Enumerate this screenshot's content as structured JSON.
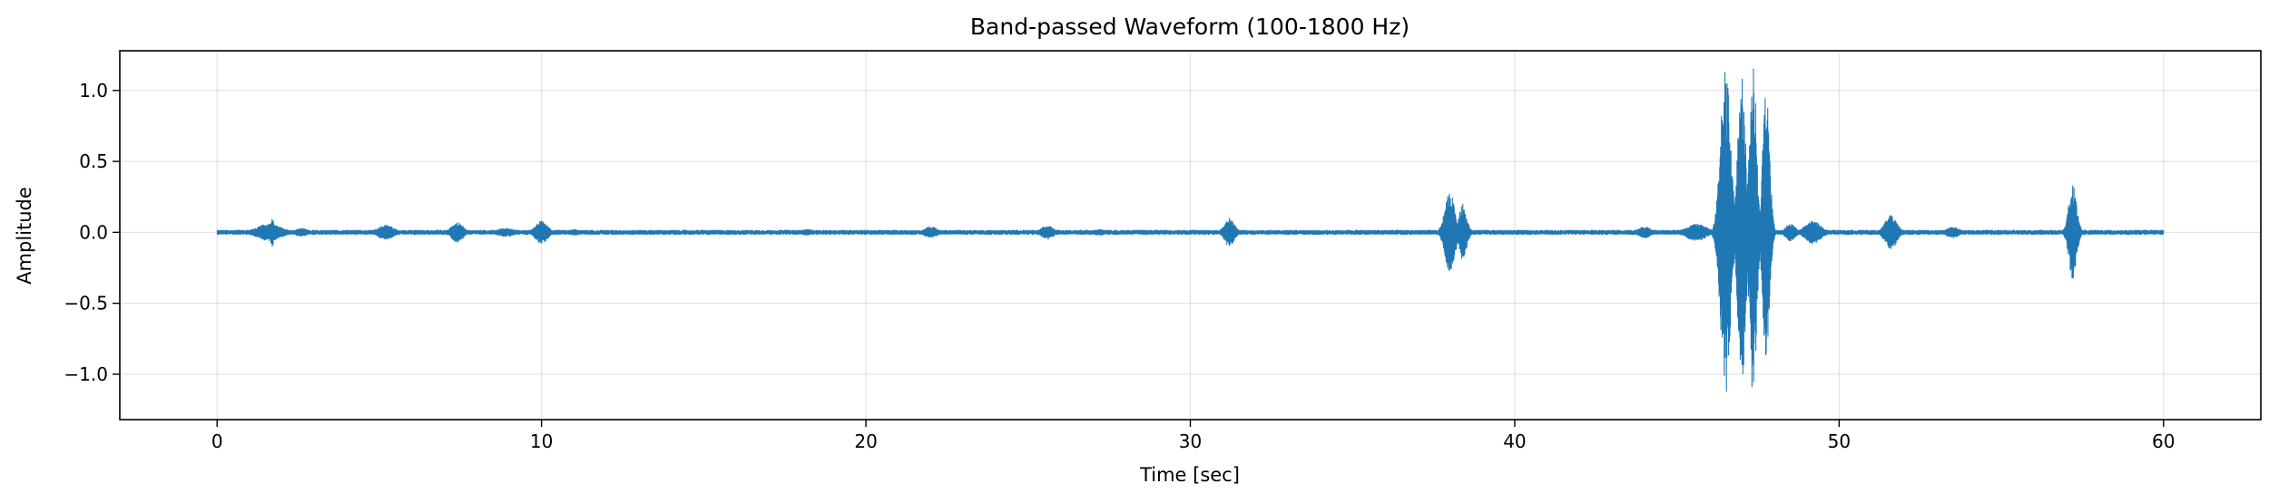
{
  "chart_data": {
    "type": "line",
    "title": "Band-passed Waveform (100-1800 Hz)",
    "xlabel": "Time [sec]",
    "ylabel": "Amplitude",
    "xlim": [
      -3,
      63
    ],
    "ylim": [
      -1.32,
      1.28
    ],
    "x_ticks": [
      0,
      10,
      20,
      30,
      40,
      50,
      60
    ],
    "x_tick_labels": [
      "0",
      "10",
      "20",
      "30",
      "40",
      "50",
      "60"
    ],
    "y_ticks": [
      -1.0,
      -0.5,
      0.0,
      0.5,
      1.0
    ],
    "y_tick_labels": [
      "−1.0",
      "−0.5",
      "0.0",
      "0.5",
      "1.0"
    ],
    "grid": true,
    "legend": "none",
    "color": "#1f77b4",
    "x_range": [
      0,
      60
    ],
    "baseline_amplitude": 0.01,
    "series": [
      {
        "bursts": [
          {
            "t": 1.6,
            "amp": 0.06,
            "dur": 1.2
          },
          {
            "t": 1.7,
            "amp": 0.1,
            "dur": 0.2
          },
          {
            "t": 2.6,
            "amp": 0.03,
            "dur": 0.6
          },
          {
            "t": 5.2,
            "amp": 0.05,
            "dur": 0.8
          },
          {
            "t": 7.4,
            "amp": 0.07,
            "dur": 0.6
          },
          {
            "t": 8.9,
            "amp": 0.03,
            "dur": 0.8
          },
          {
            "t": 10.0,
            "amp": 0.08,
            "dur": 0.6
          },
          {
            "t": 11.0,
            "amp": 0.02,
            "dur": 0.6
          },
          {
            "t": 18.2,
            "amp": 0.02,
            "dur": 0.6
          },
          {
            "t": 22.0,
            "amp": 0.04,
            "dur": 0.6
          },
          {
            "t": 25.6,
            "amp": 0.05,
            "dur": 0.6
          },
          {
            "t": 27.2,
            "amp": 0.02,
            "dur": 0.6
          },
          {
            "t": 31.2,
            "amp": 0.1,
            "dur": 0.5
          },
          {
            "t": 38.0,
            "amp": 0.28,
            "dur": 0.5
          },
          {
            "t": 38.4,
            "amp": 0.2,
            "dur": 0.4
          },
          {
            "t": 44.0,
            "amp": 0.04,
            "dur": 0.6
          },
          {
            "t": 45.6,
            "amp": 0.06,
            "dur": 1.0
          },
          {
            "t": 46.5,
            "amp": 1.18,
            "dur": 0.5
          },
          {
            "t": 47.0,
            "amp": 1.1,
            "dur": 0.4
          },
          {
            "t": 47.35,
            "amp": 1.2,
            "dur": 0.35
          },
          {
            "t": 47.75,
            "amp": 1.0,
            "dur": 0.35
          },
          {
            "t": 48.5,
            "amp": 0.06,
            "dur": 0.5
          },
          {
            "t": 49.2,
            "amp": 0.08,
            "dur": 0.8
          },
          {
            "t": 51.6,
            "amp": 0.12,
            "dur": 0.6
          },
          {
            "t": 53.5,
            "amp": 0.04,
            "dur": 0.6
          },
          {
            "t": 57.2,
            "amp": 0.33,
            "dur": 0.4
          }
        ]
      }
    ]
  }
}
